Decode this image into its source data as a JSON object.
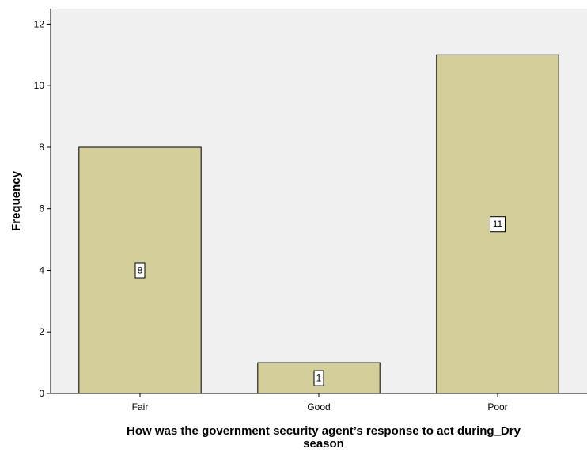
{
  "chart_data": {
    "type": "bar",
    "categories": [
      "Fair",
      "Good",
      "Poor"
    ],
    "values": [
      8,
      1,
      11
    ],
    "data_labels": [
      "8",
      "1",
      "11"
    ],
    "title": "",
    "xlabel": "How was the government security agent’s response to act during_Dry season",
    "xlabel_lines": [
      "How was the government security agent’s response to act during_Dry",
      "season"
    ],
    "ylabel": "Frequency",
    "ylim": [
      0,
      12.5
    ],
    "yticks": [
      0,
      2,
      4,
      6,
      8,
      10,
      12
    ],
    "ytick_labels": [
      "0",
      "2",
      "4",
      "6",
      "8",
      "10",
      "12"
    ],
    "grid": false,
    "legend": "none",
    "colors": {
      "bar_fill": "#d3ce9a",
      "bar_stroke": "#000000",
      "plot_background": "#f0f0f0",
      "axis": "#000000"
    }
  }
}
